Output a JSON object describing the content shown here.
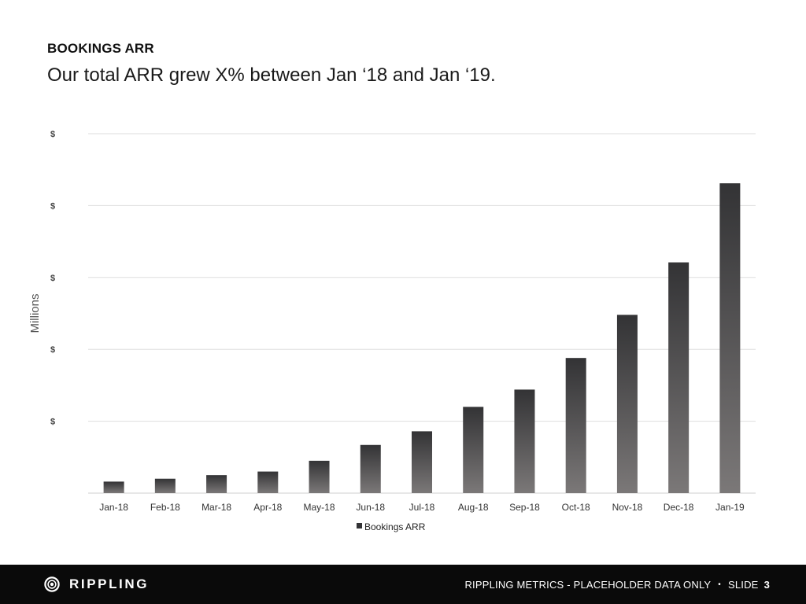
{
  "slide": {
    "heading": "BOOKINGS ARR",
    "subtitle": "Our total ARR grew X% between Jan ‘18 and Jan ‘19."
  },
  "chart_data": {
    "type": "bar",
    "title": "",
    "xlabel": "",
    "ylabel": "Millions",
    "categories": [
      "Jan-18",
      "Feb-18",
      "Mar-18",
      "Apr-18",
      "May-18",
      "Jun-18",
      "Jul-18",
      "Aug-18",
      "Sep-18",
      "Oct-18",
      "Nov-18",
      "Dec-18",
      "Jan-19"
    ],
    "series": [
      {
        "name": "Bookings ARR",
        "values": [
          0.16,
          0.2,
          0.25,
          0.3,
          0.45,
          0.67,
          0.86,
          1.2,
          1.44,
          1.88,
          2.48,
          3.21,
          4.31
        ]
      }
    ],
    "ylim": [
      0,
      5
    ],
    "yticks": [
      1,
      2,
      3,
      4,
      5
    ],
    "ytick_labels": [
      "$",
      "$",
      "$",
      "$",
      "$"
    ],
    "grid": true,
    "legend": "bottom-center",
    "colors": {
      "bar_top": "#333335",
      "bar_bottom": "#7b7878",
      "grid": "#dddddd"
    }
  },
  "footer": {
    "logo_text": "RIPPLING",
    "logo_icon": "rippling-logo-icon",
    "text": "RIPPLING METRICS - PLACEHOLDER DATA ONLY",
    "separator": "•",
    "slide_label": "SLIDE",
    "slide_number": "3"
  }
}
